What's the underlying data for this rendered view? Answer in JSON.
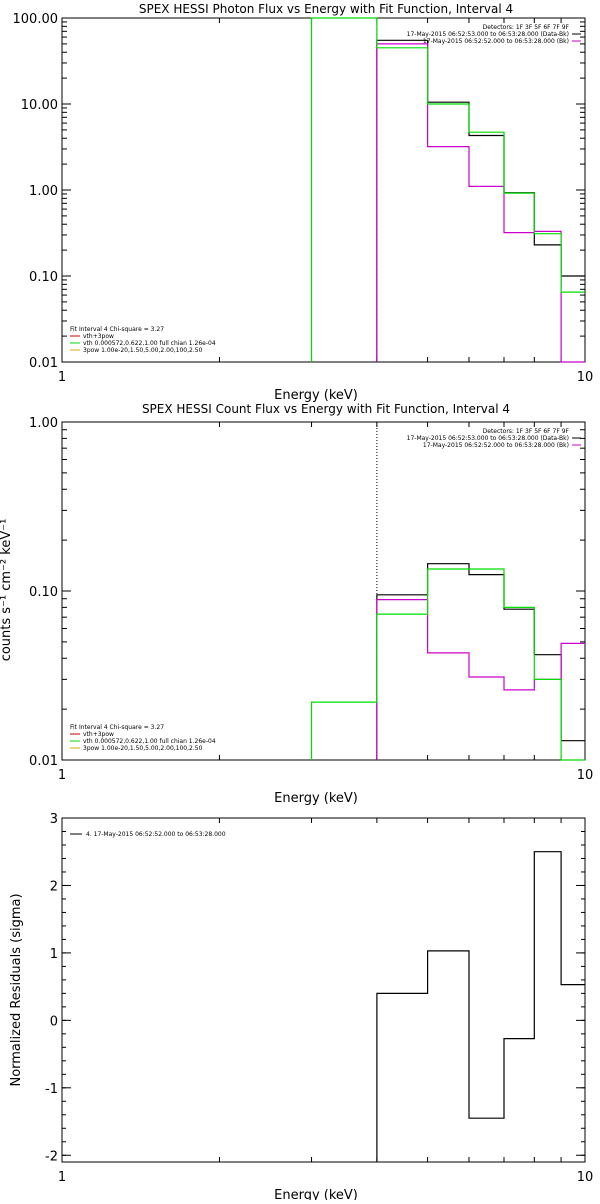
{
  "chart_data": [
    {
      "type": "line",
      "title": "SPEX HESSI Photon Flux vs Energy with Fit Function, Interval 4",
      "xlabel": "Energy (keV)",
      "ylabel": "",
      "xscale": "log",
      "yscale": "log",
      "xlim": [
        1,
        10
      ],
      "ylim": [
        0.01,
        100
      ],
      "xticks": [
        {
          "v": 1,
          "label": "1"
        },
        {
          "v": 10,
          "label": "10"
        }
      ],
      "yticks": [
        {
          "v": 0.01,
          "label": "0.01"
        },
        {
          "v": 0.1,
          "label": "0.10"
        },
        {
          "v": 1,
          "label": "1.00"
        },
        {
          "v": 10,
          "label": "10.00"
        },
        {
          "v": 100,
          "label": "100.00"
        }
      ],
      "edges": [
        3,
        4,
        5,
        6,
        7,
        8,
        9,
        10
      ],
      "series": [
        {
          "color": "#000000",
          "values": [
            null,
            55,
            10.5,
            4.3,
            0.93,
            0.23,
            0.1
          ]
        },
        {
          "color": "#cc00cc",
          "values": [
            null,
            50,
            3.2,
            1.1,
            0.32,
            0.33,
            0.01
          ]
        },
        {
          "color": "#00dd00",
          "values": [
            100,
            45,
            10,
            4.7,
            0.92,
            0.31,
            0.065
          ]
        }
      ],
      "vline": {
        "x": 4,
        "color": "#cc00cc",
        "style": "dashed"
      },
      "vline_extra": {
        "x": 3,
        "color": "#00dd00"
      },
      "annot_right": [
        {
          "text": "Detectors: 1F 3F 5F 6F 7F 9F",
          "color": "#000000"
        },
        {
          "text": "17-May-2015 06:52:53.000 to 06:53:28.000 (Data-Bk)",
          "color": "#000000"
        },
        {
          "text": "17-May-2015 06:52:52.000 to 06:53:28.000 (Bk)",
          "color": "#cc00cc"
        }
      ],
      "legend": {
        "header": "Fit Interval 4   Chi-square = 3.27",
        "items": [
          {
            "text": "vth+3pow",
            "color": "#cc0000"
          },
          {
            "text": "vth 0.000572,0.622,1.00  full chian 1.26e-04",
            "color": "#00dd00"
          },
          {
            "text": "3pow 1.00e-20,1.50,5.00,2.00,100,2.50",
            "color": "#ddaa00"
          }
        ]
      }
    },
    {
      "type": "line",
      "title": "SPEX HESSI Count Flux vs Energy with Fit Function, Interval 4",
      "xlabel": "Energy (keV)",
      "ylabel": "counts s⁻¹ cm⁻² keV⁻¹",
      "xscale": "log",
      "yscale": "log",
      "xlim": [
        1,
        10
      ],
      "ylim": [
        0.01,
        1
      ],
      "xticks": [
        {
          "v": 1,
          "label": "1"
        },
        {
          "v": 10,
          "label": "10"
        }
      ],
      "yticks": [
        {
          "v": 0.01,
          "label": "0.01"
        },
        {
          "v": 0.1,
          "label": "0.10"
        },
        {
          "v": 1,
          "label": "1.00"
        }
      ],
      "edges": [
        3,
        4,
        5,
        6,
        7,
        8,
        9,
        10
      ],
      "series": [
        {
          "color": "#000000",
          "values": [
            null,
            0.095,
            0.145,
            0.125,
            0.078,
            0.042,
            0.013
          ]
        },
        {
          "color": "#cc00cc",
          "values": [
            null,
            0.089,
            0.043,
            0.031,
            0.026,
            0.03,
            0.049
          ]
        },
        {
          "color": "#00dd00",
          "values": [
            0.022,
            0.073,
            0.135,
            0.135,
            0.08,
            0.03,
            0.01
          ]
        }
      ],
      "vline": {
        "x": 4,
        "color": "#000000",
        "style": "dotted"
      },
      "annot_right": [
        {
          "text": "Detectors: 1F 3F 5F 6F 7F 9F",
          "color": "#000000"
        },
        {
          "text": "17-May-2015 06:52:53.000 to 06:53:28.000 (Data-Bk)",
          "color": "#000000"
        },
        {
          "text": "17-May-2015 06:52:52.000 to 06:53:28.000 (Bk)",
          "color": "#cc00cc"
        }
      ],
      "legend": {
        "header": "Fit Interval 4   Chi-square = 3.27",
        "items": [
          {
            "text": "vth+3pow",
            "color": "#cc0000"
          },
          {
            "text": "vth 0.000572,0.622,1.00  full chian 1.26e-04",
            "color": "#00dd00"
          },
          {
            "text": "3pow 1.00e-20,1.50,5.00,2.00,100,2.50",
            "color": "#ddaa00"
          }
        ]
      }
    },
    {
      "type": "line",
      "title": "",
      "xlabel": "Energy (keV)",
      "ylabel": "Normalized Residuals (sigma)",
      "xscale": "log",
      "yscale": "linear",
      "xlim": [
        1,
        10
      ],
      "ylim": [
        -2.1,
        3
      ],
      "xticks": [
        {
          "v": 1,
          "label": "1"
        },
        {
          "v": 10,
          "label": "10"
        }
      ],
      "yticks": [
        {
          "v": -2,
          "label": "-2"
        },
        {
          "v": -1,
          "label": "-1"
        },
        {
          "v": 0,
          "label": "0"
        },
        {
          "v": 1,
          "label": "1"
        },
        {
          "v": 2,
          "label": "2"
        },
        {
          "v": 3,
          "label": "3"
        }
      ],
      "edges": [
        4,
        5,
        6,
        7,
        8,
        9,
        10
      ],
      "series": [
        {
          "color": "#000000",
          "values": [
            0.4,
            1.03,
            -1.45,
            -0.27,
            2.5,
            0.53
          ]
        }
      ],
      "legend": {
        "header": "",
        "items": [
          {
            "text": "4. 17-May-2015 06:52:52.000 to 06:53:28.000",
            "color": "#000000"
          }
        ]
      }
    }
  ]
}
